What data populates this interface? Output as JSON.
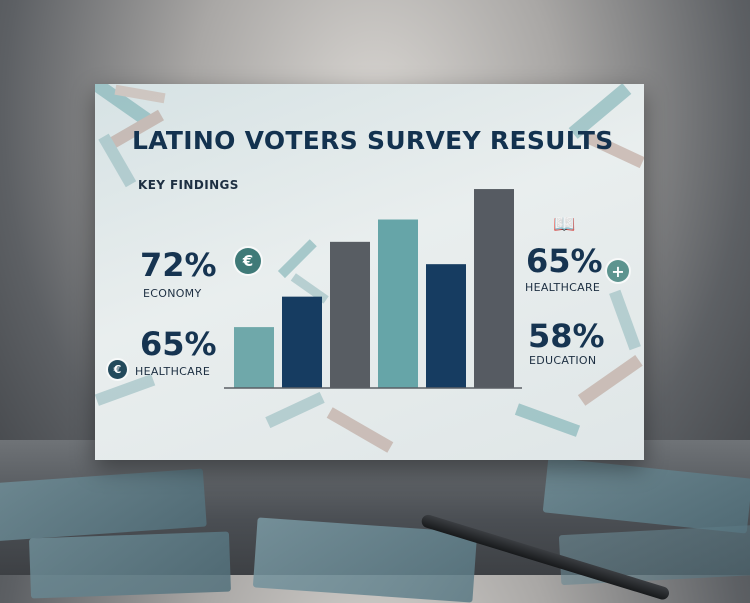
{
  "chart_data": {
    "type": "bar",
    "title": "LATINO VOTERS SURVEY RESULTS",
    "subtitle": "KEY FINDINGS",
    "categories": [
      "",
      "",
      "",
      "",
      "",
      ""
    ],
    "values": [
      30,
      45,
      72,
      83,
      61,
      98
    ],
    "bar_colors": [
      "#6fa8aa",
      "#163c61",
      "#585d63",
      "#66a5a8",
      "#163c61",
      "#565b62"
    ],
    "ylim": [
      0,
      100
    ],
    "grid": false,
    "legend": "none"
  },
  "stats": [
    {
      "value": "72%",
      "label": "ECONOMY"
    },
    {
      "value": "65%",
      "label": "HEALTHCARE"
    },
    {
      "value": "65%",
      "label": "HEALTHCARE"
    },
    {
      "value": "58%",
      "label": "EDUCATION"
    }
  ],
  "icons": {
    "euro": "€",
    "plus": "+",
    "book": "📖"
  }
}
